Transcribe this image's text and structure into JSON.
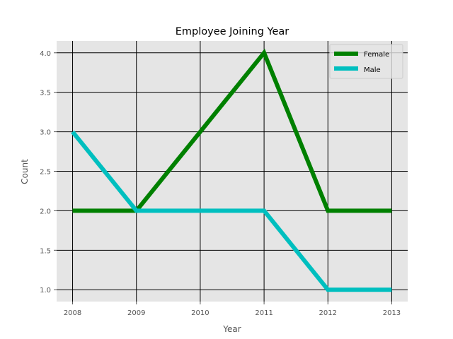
{
  "chart_data": {
    "type": "line",
    "title": "Employee Joining Year",
    "xlabel": "Year",
    "ylabel": "Count",
    "x": [
      2008,
      2009,
      2010,
      2011,
      2012,
      2013
    ],
    "x_tick_labels": [
      "2008",
      "2009",
      "2010",
      "2011",
      "2012",
      "2013"
    ],
    "y_ticks": [
      1.0,
      1.5,
      2.0,
      2.5,
      3.0,
      3.5,
      4.0
    ],
    "y_tick_labels": [
      "1.0",
      "1.5",
      "2.0",
      "2.5",
      "3.0",
      "3.5",
      "4.0"
    ],
    "xlim": [
      2007.75,
      2013.25
    ],
    "ylim": [
      0.85,
      4.15
    ],
    "grid": true,
    "legend_position": "top-right",
    "background_color": "#e5e5e5",
    "grid_color": "#000000",
    "series": [
      {
        "name": "Female",
        "color": "#008000",
        "values": [
          2,
          2,
          3,
          4,
          2,
          2
        ]
      },
      {
        "name": "Male",
        "color": "#00bfbf",
        "values": [
          3,
          2,
          2,
          2,
          1,
          1
        ]
      }
    ]
  }
}
